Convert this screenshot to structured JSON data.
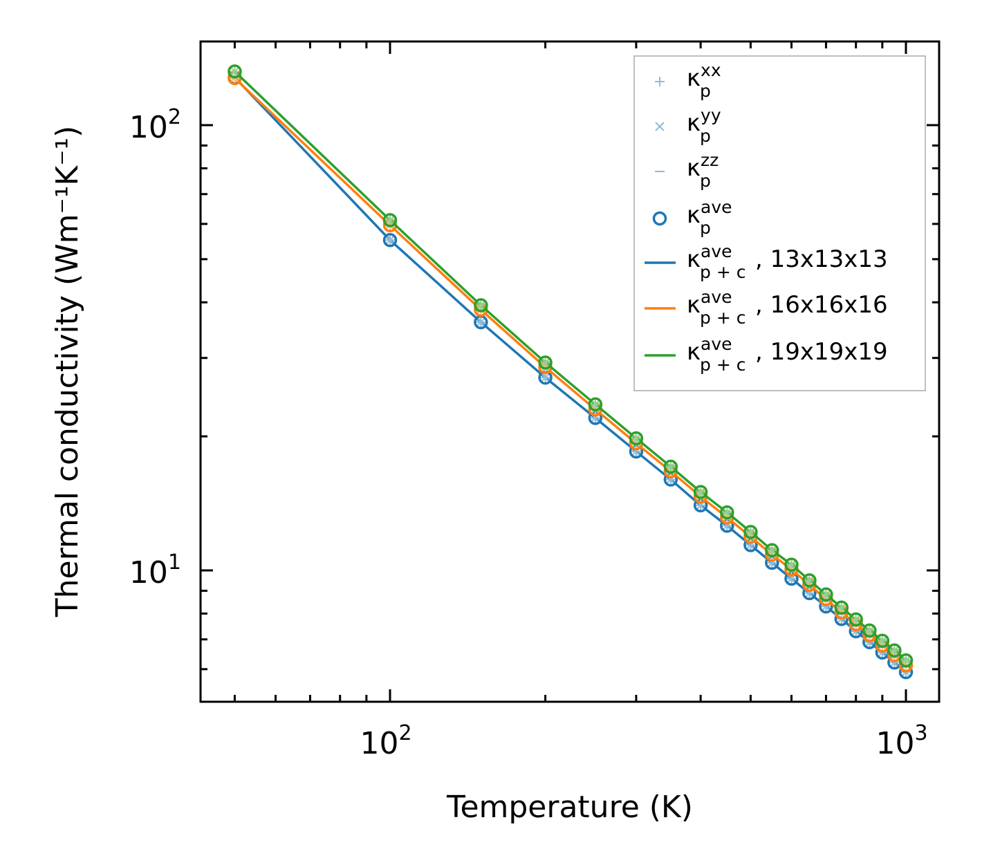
{
  "chart_data": {
    "type": "line",
    "title": "",
    "xlabel": "Temperature (K)",
    "ylabel": "Thermal conductivity (Wm⁻¹K⁻¹)",
    "xscale": "log",
    "yscale": "log",
    "xlim": [
      43,
      1160
    ],
    "ylim": [
      5.07,
      154
    ],
    "xticks": [
      {
        "value": 100,
        "base": "10",
        "exp": "2"
      },
      {
        "value": 1000,
        "base": "10",
        "exp": "3"
      }
    ],
    "yticks": [
      {
        "value": 10,
        "base": "10",
        "exp": "1"
      },
      {
        "value": 100,
        "base": "10",
        "exp": "2"
      }
    ],
    "x": [
      50,
      100,
      150,
      200,
      250,
      300,
      350,
      400,
      450,
      500,
      550,
      600,
      650,
      700,
      750,
      800,
      850,
      900,
      950,
      1000
    ],
    "series": [
      {
        "name": "13x13x13",
        "color": "#1f77b4",
        "light": "#8fbbd9",
        "values": [
          128,
          55.2,
          36.1,
          27.1,
          22.0,
          18.5,
          16.0,
          14.0,
          12.6,
          11.4,
          10.4,
          9.58,
          8.89,
          8.3,
          7.78,
          7.3,
          6.9,
          6.54,
          6.21,
          5.91
        ]
      },
      {
        "name": "16x16x16",
        "color": "#ff7f0e",
        "light": "#ffbf86",
        "values": [
          127.5,
          59.6,
          38.5,
          28.6,
          23.0,
          19.3,
          16.7,
          14.65,
          13.15,
          11.9,
          10.85,
          10.05,
          9.28,
          8.62,
          8.05,
          7.57,
          7.15,
          6.78,
          6.45,
          6.12
        ]
      },
      {
        "name": "19x19x19",
        "color": "#2ca02c",
        "light": "#95cf95",
        "values": [
          132,
          61.2,
          39.4,
          29.3,
          23.6,
          19.8,
          17.1,
          15.0,
          13.5,
          12.2,
          11.1,
          10.3,
          9.5,
          8.83,
          8.25,
          7.76,
          7.33,
          6.95,
          6.61,
          6.28
        ]
      }
    ],
    "legend": {
      "placement": "top-right",
      "entries": [
        {
          "marker": "plus",
          "sym": "κ",
          "sub": "p",
          "sup": "xx",
          "suffix": ""
        },
        {
          "marker": "x",
          "sym": "κ",
          "sub": "p",
          "sup": "yy",
          "suffix": ""
        },
        {
          "marker": "hline",
          "sym": "κ",
          "sub": "p",
          "sup": "zz",
          "suffix": ""
        },
        {
          "marker": "circle",
          "sym": "κ",
          "sub": "p",
          "sup": "ave",
          "suffix": ""
        },
        {
          "marker": "line",
          "sym": "κ",
          "sub": "p + c",
          "sup": "ave",
          "suffix": ", 13x13x13"
        },
        {
          "marker": "line",
          "sym": "κ",
          "sub": "p + c",
          "sup": "ave",
          "suffix": ", 16x16x16"
        },
        {
          "marker": "line",
          "sym": "κ",
          "sub": "p + c",
          "sup": "ave",
          "suffix": ", 19x19x19"
        }
      ]
    }
  }
}
